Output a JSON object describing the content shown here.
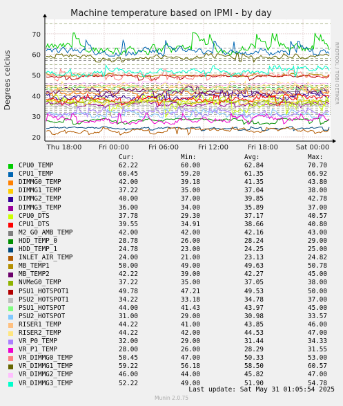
{
  "chart_data": {
    "type": "line",
    "title": "Machine temperature based on IPMI - by day",
    "ylabel": "Degrees celcius",
    "side_label": "RRDTOOL / TOBI OETIKER",
    "ylim": [
      18,
      77
    ],
    "yticks": [
      20,
      30,
      40,
      50,
      60,
      70
    ],
    "x_ticks": [
      "Thu 18:00",
      "Fri 00:00",
      "Fri 06:00",
      "Fri 12:00",
      "Fri 18:00",
      "Sat 00:00"
    ],
    "warning_lines": [
      75,
      63,
      58,
      57,
      55,
      53,
      51,
      46,
      45,
      44,
      43,
      41,
      40,
      39,
      38,
      37,
      36,
      35,
      34,
      33,
      32,
      31
    ],
    "columns": [
      "Cur:",
      "Min:",
      "Avg:",
      "Max:"
    ],
    "series": [
      {
        "name": "CPU0_TEMP",
        "color": "#00cc00",
        "cur": "62.22",
        "min": "60.00",
        "avg": "62.84",
        "max": "70.70"
      },
      {
        "name": "CPU1_TEMP",
        "color": "#0066b3",
        "cur": "60.45",
        "min": "59.20",
        "avg": "61.35",
        "max": "66.92"
      },
      {
        "name": "DIMMG0_TEMP",
        "color": "#ff8000",
        "cur": "42.00",
        "min": "39.18",
        "avg": "41.35",
        "max": "43.80"
      },
      {
        "name": "DIMMG1_TEMP",
        "color": "#ffcc00",
        "cur": "37.22",
        "min": "35.00",
        "avg": "37.04",
        "max": "38.00"
      },
      {
        "name": "DIMMG2_TEMP",
        "color": "#330099",
        "cur": "40.00",
        "min": "37.00",
        "avg": "39.85",
        "max": "42.78"
      },
      {
        "name": "DIMMG3_TEMP",
        "color": "#990099",
        "cur": "36.00",
        "min": "34.00",
        "avg": "35.89",
        "max": "37.00"
      },
      {
        "name": "CPU0_DTS",
        "color": "#ccff00",
        "cur": "37.78",
        "min": "29.30",
        "avg": "37.17",
        "max": "40.57"
      },
      {
        "name": "CPU1_DTS",
        "color": "#ff0000",
        "cur": "39.55",
        "min": "34.91",
        "avg": "38.66",
        "max": "40.80"
      },
      {
        "name": "M2_G0_AMB_TEMP",
        "color": "#808080",
        "cur": "42.00",
        "min": "42.00",
        "avg": "42.16",
        "max": "43.00"
      },
      {
        "name": "HDD_TEMP_0",
        "color": "#008f00",
        "cur": "28.78",
        "min": "26.00",
        "avg": "28.24",
        "max": "29.00"
      },
      {
        "name": "HDD_TEMP_1",
        "color": "#00487d",
        "cur": "24.78",
        "min": "23.00",
        "avg": "24.25",
        "max": "25.00"
      },
      {
        "name": "INLET_AIR_TEMP",
        "color": "#b35a00",
        "cur": "24.00",
        "min": "21.00",
        "avg": "23.13",
        "max": "24.82"
      },
      {
        "name": "MB_TEMP1",
        "color": "#b38f00",
        "cur": "50.00",
        "min": "49.00",
        "avg": "49.63",
        "max": "50.78"
      },
      {
        "name": "MB_TEMP2",
        "color": "#6b006b",
        "cur": "42.22",
        "min": "39.00",
        "avg": "42.27",
        "max": "45.00"
      },
      {
        "name": "NVMeG0_TEMP",
        "color": "#8fb300",
        "cur": "37.22",
        "min": "35.00",
        "avg": "37.05",
        "max": "38.00"
      },
      {
        "name": "PSU1_HOTSPOT1",
        "color": "#b30000",
        "cur": "49.78",
        "min": "47.21",
        "avg": "49.53",
        "max": "50.00"
      },
      {
        "name": "PSU2_HOTSPOT1",
        "color": "#bebebe",
        "cur": "34.22",
        "min": "33.18",
        "avg": "34.78",
        "max": "37.00"
      },
      {
        "name": "PSU1_HOTSPOT",
        "color": "#80ff80",
        "cur": "44.00",
        "min": "41.43",
        "avg": "43.97",
        "max": "45.00"
      },
      {
        "name": "PSU2_HOTSPOT",
        "color": "#80c9ff",
        "cur": "31.00",
        "min": "29.00",
        "avg": "30.98",
        "max": "33.57"
      },
      {
        "name": "RISER1_TEMP",
        "color": "#ffc080",
        "cur": "44.22",
        "min": "41.00",
        "avg": "43.85",
        "max": "46.00"
      },
      {
        "name": "RISER2_TEMP",
        "color": "#ffe680",
        "cur": "44.22",
        "min": "42.00",
        "avg": "44.53",
        "max": "47.00"
      },
      {
        "name": "VR_P0_TEMP",
        "color": "#aa80ff",
        "cur": "32.00",
        "min": "29.00",
        "avg": "31.44",
        "max": "34.33"
      },
      {
        "name": "VR_P1_TEMP",
        "color": "#ee00cc",
        "cur": "28.00",
        "min": "26.00",
        "avg": "28.29",
        "max": "31.55"
      },
      {
        "name": "VR_DIMMG0_TEMP",
        "color": "#ff8080",
        "cur": "50.45",
        "min": "47.00",
        "avg": "50.33",
        "max": "53.00"
      },
      {
        "name": "VR_DIMMG1_TEMP",
        "color": "#666600",
        "cur": "59.22",
        "min": "56.18",
        "avg": "58.50",
        "max": "60.57"
      },
      {
        "name": "VR_DIMMG2_TEMP",
        "color": "#ffbfff",
        "cur": "46.00",
        "min": "44.00",
        "avg": "45.82",
        "max": "47.00"
      },
      {
        "name": "VR_DIMMG3_TEMP",
        "color": "#00ffcc",
        "cur": "52.22",
        "min": "49.00",
        "avg": "51.90",
        "max": "54.78"
      }
    ]
  },
  "footer": {
    "last_update": "Last update: Sat May 31 01:05:54 2025",
    "version": "Munin 2.0.75"
  }
}
